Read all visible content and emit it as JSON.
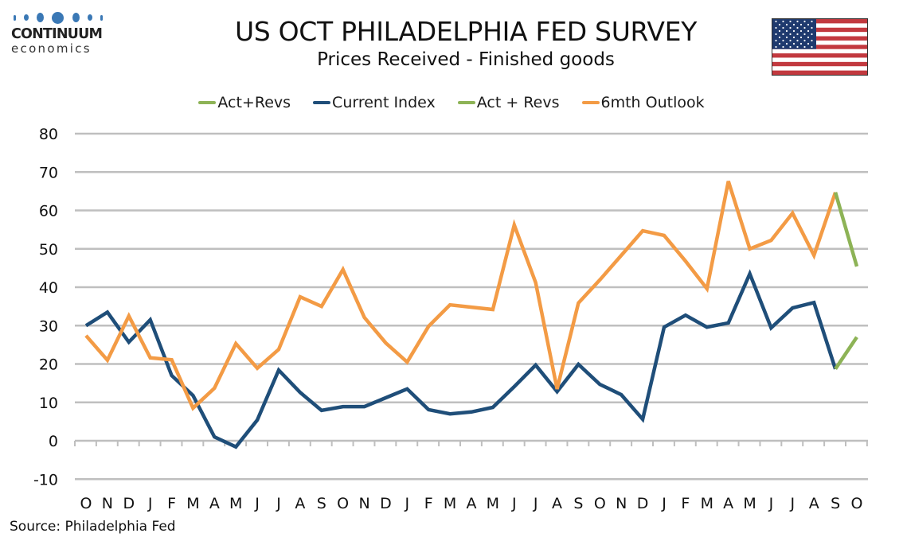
{
  "logo": {
    "word": "CONTINUUM",
    "sub": "economics",
    "color": "#3a78b5"
  },
  "header": {
    "title": "US OCT PHILADELPHIA FED SURVEY",
    "subtitle": "Prices Received - Finished goods",
    "flag_icon": "us-flag-icon"
  },
  "source": "Source: Philadelphia Fed",
  "chart_data": {
    "type": "line",
    "title": "US OCT PHILADELPHIA FED SURVEY",
    "subtitle": "Prices Received - Finished goods",
    "xlabel": "",
    "ylabel": "",
    "ylim": [
      -10,
      80
    ],
    "yticks": [
      80,
      70,
      60,
      50,
      40,
      30,
      20,
      10,
      0,
      -10
    ],
    "grid": true,
    "legend_position": "top",
    "categories": [
      "O",
      "N",
      "D",
      "J",
      "F",
      "M",
      "A",
      "M",
      "J",
      "J",
      "A",
      "S",
      "O",
      "N",
      "D",
      "J",
      "F",
      "M",
      "A",
      "M",
      "J",
      "J",
      "A",
      "S",
      "O",
      "N",
      "D",
      "J",
      "F",
      "M",
      "A",
      "M",
      "J",
      "J",
      "A",
      "S",
      "O"
    ],
    "legend": [
      {
        "label": "Act+Revs",
        "color": "#8db356"
      },
      {
        "label": "Current Index",
        "color": "#1f4e79"
      },
      {
        "label": "Act + Revs",
        "color": "#8db356"
      },
      {
        "label": "6mth Outlook",
        "color": "#f39b45"
      }
    ],
    "series": [
      {
        "name": "Current Index",
        "color": "#1f4e79",
        "values": [
          30,
          33.5,
          25.7,
          31.5,
          17,
          11.8,
          1,
          -1.6,
          5.4,
          18.4,
          12.6,
          7.9,
          8.9,
          8.9,
          11.2,
          13.5,
          8.1,
          7,
          7.5,
          8.7,
          14.1,
          19.7,
          12.8,
          19.9,
          14.7,
          12,
          5.6,
          29.6,
          32.7,
          29.6,
          30.7,
          43.5,
          29.4,
          34.6,
          36,
          18.7,
          null
        ]
      },
      {
        "name": "Act+Revs",
        "color": "#8db356",
        "values": [
          null,
          null,
          null,
          null,
          null,
          null,
          null,
          null,
          null,
          null,
          null,
          null,
          null,
          null,
          null,
          null,
          null,
          null,
          null,
          null,
          null,
          null,
          null,
          null,
          null,
          null,
          null,
          null,
          null,
          null,
          null,
          null,
          null,
          null,
          null,
          18.7,
          27
        ]
      },
      {
        "name": "6mth Outlook",
        "color": "#f39b45",
        "values": [
          27.4,
          21,
          32.5,
          21.6,
          21.1,
          8.5,
          13.7,
          25.3,
          18.9,
          23.8,
          37.5,
          35,
          44.6,
          32.1,
          25.5,
          20.5,
          29.8,
          35.4,
          34.8,
          34.2,
          56.2,
          41.2,
          13.5,
          35.9,
          41.9,
          48.3,
          54.7,
          53.5,
          46.8,
          39.6,
          67.6,
          50,
          52.2,
          59.3,
          48.3,
          64.7,
          null
        ]
      },
      {
        "name": "Act + Revs",
        "color": "#8db356",
        "values": [
          null,
          null,
          null,
          null,
          null,
          null,
          null,
          null,
          null,
          null,
          null,
          null,
          null,
          null,
          null,
          null,
          null,
          null,
          null,
          null,
          null,
          null,
          null,
          null,
          null,
          null,
          null,
          null,
          null,
          null,
          null,
          null,
          null,
          null,
          null,
          64.7,
          45.4
        ]
      }
    ]
  }
}
